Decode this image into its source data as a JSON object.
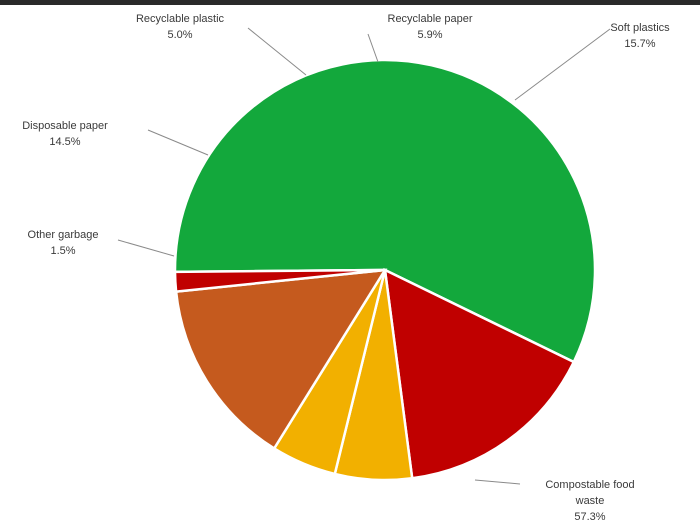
{
  "chart_data": {
    "type": "pie",
    "slices": [
      {
        "label": "Compostable food waste",
        "label_lines": [
          "Compostable food",
          "waste"
        ],
        "value": 57.3,
        "value_text": "57.3%",
        "color": "#13a83c"
      },
      {
        "label": "Soft plastics",
        "label_lines": [
          "Soft plastics"
        ],
        "value": 15.7,
        "value_text": "15.7%",
        "color": "#c00000"
      },
      {
        "label": "Recyclable paper",
        "label_lines": [
          "Recyclable paper"
        ],
        "value": 5.9,
        "value_text": "5.9%",
        "color": "#f2b000"
      },
      {
        "label": "Recyclable plastic",
        "label_lines": [
          "Recyclable plastic"
        ],
        "value": 5.0,
        "value_text": "5.0%",
        "color": "#f2b000"
      },
      {
        "label": "Disposable paper",
        "label_lines": [
          "Disposable paper"
        ],
        "value": 14.5,
        "value_text": "14.5%",
        "color": "#c55a1e"
      },
      {
        "label": "Other garbage",
        "label_lines": [
          "Other garbage"
        ],
        "value": 1.5,
        "value_text": "1.5%",
        "color": "#c00000"
      }
    ]
  }
}
